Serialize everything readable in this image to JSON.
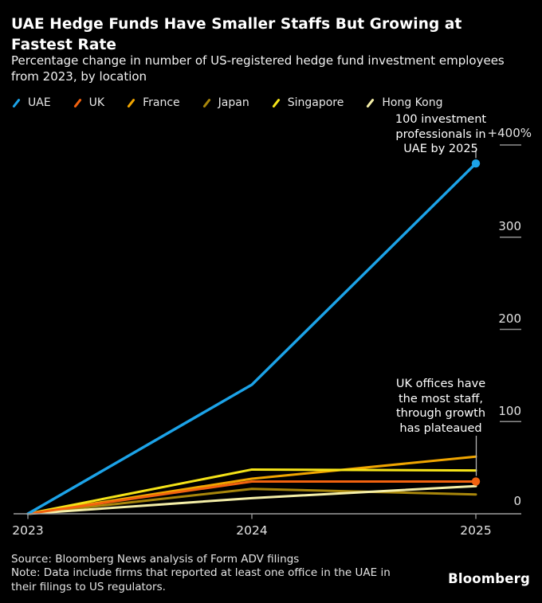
{
  "header": {
    "title": "UAE Hedge Funds Have Smaller Staffs But Growing at\nFastest Rate",
    "subtitle": "Percentage change in number of US-registered hedge fund investment employees\nfrom 2023, by location"
  },
  "legend": {
    "items": [
      {
        "label": "UAE"
      },
      {
        "label": "UK"
      },
      {
        "label": "France"
      },
      {
        "label": "Japan"
      },
      {
        "label": "Singapore"
      },
      {
        "label": "Hong Kong"
      }
    ]
  },
  "chart_data": {
    "type": "line",
    "title": "UAE Hedge Funds Have Smaller Staffs But Growing at Fastest Rate",
    "subtitle": "Percentage change in number of US-registered hedge fund investment employees from 2023, by location",
    "x": [
      2023,
      2024,
      2025
    ],
    "xtick_labels": [
      "2023",
      "2024",
      "2025"
    ],
    "series": [
      {
        "name": "UAE",
        "color": "#1CA3E8",
        "values": [
          0,
          140,
          380
        ],
        "end_dot": true
      },
      {
        "name": "UK",
        "color": "#F2620F",
        "values": [
          0,
          35,
          35
        ],
        "end_dot": true
      },
      {
        "name": "France",
        "color": "#F0A500",
        "values": [
          0,
          38,
          62
        ],
        "end_dot": false
      },
      {
        "name": "Japan",
        "color": "#A8860B",
        "values": [
          0,
          27,
          21
        ],
        "end_dot": false
      },
      {
        "name": "Singapore",
        "color": "#F5E318",
        "values": [
          0,
          48,
          47
        ],
        "end_dot": false
      },
      {
        "name": "Hong Kong",
        "color": "#F5EFA8",
        "values": [
          0,
          17,
          30
        ],
        "end_dot": false
      }
    ],
    "ylim": [
      0,
      400
    ],
    "yticks": [
      400,
      300,
      200,
      100,
      0
    ],
    "ytick_labels": [
      "+400%",
      "300",
      "200",
      "100",
      "0"
    ],
    "unit": "%",
    "grid": "off",
    "legend_position": "top",
    "axis_color": "#9e9e9e"
  },
  "annotations": {
    "uae": "100 investment\nprofessionals in\nUAE by 2025",
    "uk": "UK offices have\nthe most staff,\nthrough growth\nhas plateaued"
  },
  "footer": {
    "source": "Source: Bloomberg News analysis of Form ADV filings",
    "note": "Note: Data include firms that reported at least one office in the UAE in\ntheir filings to US regulators.",
    "logo": "Bloomberg"
  }
}
